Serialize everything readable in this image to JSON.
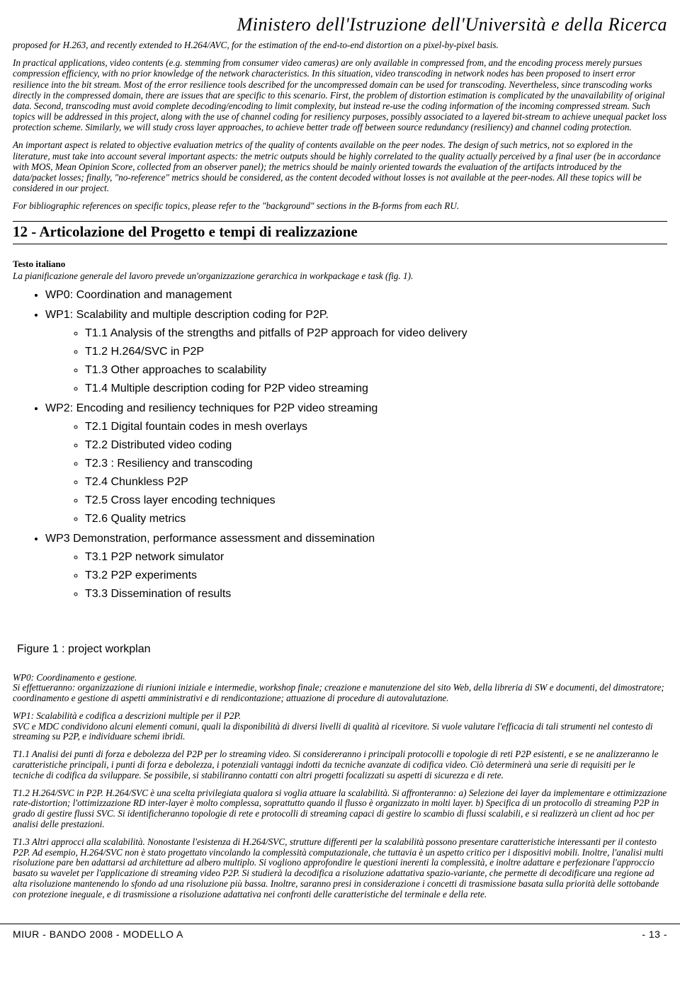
{
  "header": {
    "ministry": "Ministero dell'Istruzione dell'Università e della Ricerca"
  },
  "paragraphs": {
    "p1": "proposed for H.263, and recently extended to H.264/AVC, for the estimation of the end-to-end distortion on a pixel-by-pixel basis.",
    "p2": "In practical applications, video contents (e.g. stemming from consumer video cameras) are only available in compressed from, and the encoding process merely pursues compression efficiency, with no prior knowledge of the network characteristics. In this situation, video transcoding in network nodes has been proposed to insert error resilience into the bit stream. Most of the error resilience tools described for the uncompressed domain can be used for transcoding. Nevertheless, since transcoding works directly in the compressed domain, there are issues that are specific to this scenario. First, the problem of distortion estimation is complicated by the unavailability of original data. Second, transcoding must avoid complete decoding/encoding to limit complexity, but instead re-use the coding information of the incoming compressed stream. Such topics will be addressed in this project, along with the use of channel coding for resiliency purposes, possibly associated to a layered bit-stream to achieve unequal packet loss protection scheme. Similarly, we will study cross layer approaches, to achieve better trade off between source redundancy (resiliency) and channel coding protection.",
    "p3": "An important aspect is related to objective evaluation metrics of the quality of contents available on the peer nodes. The design of such metrics,  not so explored in the literature, must take into account several important aspects: the metric outputs should be highly correlated to the quality actually perceived by a final user (be in accordance with MOS, Mean Opinion Score, collected from an observer panel); the metrics should be mainly oriented towards the evaluation of the artifacts introduced by the data/packet losses; finally, \"no-reference\" metrics should be considered, as the content decoded without losses is not available at the peer-nodes. All these topics will be considered in our project.",
    "p4": "For bibliographic references on specific topics, please refer to the \"background\" sections in the B-forms from each RU."
  },
  "section12": {
    "number_title": "12 - Articolazione del Progetto e tempi di realizzazione",
    "testo_label": "Testo italiano",
    "intro": "La pianificazione generale del lavoro prevede un'organizzazione gerarchica in  workpackage e task  (fig. 1)."
  },
  "workplan": {
    "wp0": "WP0: Coordination and management",
    "wp1": "WP1: Scalability and multiple description coding for P2P.",
    "wp1_items": {
      "t11": "T1.1 Analysis of the strengths and pitfalls of P2P approach for video delivery",
      "t12": "T1.2 H.264/SVC in P2P",
      "t13": "T1.3 Other approaches to scalability",
      "t14": "T1.4 Multiple description coding for P2P video streaming"
    },
    "wp2": "WP2: Encoding and resiliency techniques for P2P video streaming",
    "wp2_items": {
      "t21": "T2.1 Digital fountain codes  in mesh overlays",
      "t22": "T2.2 Distributed video coding",
      "t23": "T2.3 : Resiliency and transcoding",
      "t24": "T2.4 Chunkless P2P",
      "t25": "T2.5 Cross layer encoding techniques",
      "t26": "T2.6 Quality metrics"
    },
    "wp3": "WP3 Demonstration, performance assessment and dissemination",
    "wp3_items": {
      "t31": "T3.1 P2P network simulator",
      "t32": "T3.2 P2P experiments",
      "t33": "T3.3 Dissemination of results"
    },
    "figure_caption": "Figure 1 : project workplan"
  },
  "body_it": {
    "wp0": "WP0: Coordinamento e gestione.\nSi effettueranno: organizzazione di riunioni iniziale e intermedie, workshop finale; creazione e manutenzione del sito Web, della libreria di SW e documenti, del dimostratore; coordinamento e gestione di aspetti amministrativi e di rendicontazione; attuazione di procedure di autovalutazione.",
    "wp1": "WP1: Scalabilità e codifica a descrizioni multiple per il P2P.\nSVC e MDC condividono alcuni elementi comuni, quali la disponibilità di diversi livelli di qualità al ricevitore. Si vuole valutare l'efficacia di tali strumenti nel contesto di streaming su P2P, e  individuare schemi ibridi.",
    "t11": "T1.1 Analisi dei punti di forza e debolezza del P2P per lo streaming video.  Si considereranno i principali protocolli e topologie di reti P2P esistenti, e se ne analizzeranno le caratteristiche principali, i punti di forza e debolezza, i potenziali vantaggi indotti da tecniche avanzate di codifica video. Ciò determinerà una serie di requisiti per le tecniche di codifica da sviluppare. Se possibile, si stabiliranno contatti con altri progetti focalizzati su aspetti di sicurezza e di rete.",
    "t12": "T1.2 H.264/SVC in P2P. H.264/SVC è una scelta privilegiata qualora si voglia attuare la scalabilità. Si affronteranno: a) Selezione dei layer da implementare e ottimizzazione rate-distortion; l'ottimizzazione RD inter-layer è molto complessa, soprattutto quando il flusso è organizzato in molti layer.  b) Specifica di un protocollo di streaming P2P in grado di gestire flussi SVC. Si identificheranno topologie di rete e protocolli di streaming capaci di gestire lo scambio di flussi scalabili, e si realizzerà un client ad hoc per analisi delle prestazioni.",
    "t13": "T1.3 Altri approcci alla scalabilità. Nonostante l'esistenza di H.264/SVC,  strutture differenti per la scalabilità possono presentare caratteristiche interessanti per il contesto P2P. Ad esempio, H.264/SVC non è stato progettato vincolando la complessità computazionale, che tuttavia è un aspetto critico per i dispositivi mobili. Inoltre, l'analisi multi risoluzione pare ben adattarsi ad architetture ad albero multiplo. Si vogliono approfondire le questioni inerenti la complessità, e inoltre adattare e perfezionare l'approccio basato su wavelet per l'applicazione di streaming video P2P. Si studierà la decodifica a risoluzione adattativa spazio-variante, che permette di decodificare una regione ad alta risoluzione mantenendo lo sfondo ad una risoluzione più bassa. Inoltre, saranno presi in considerazione i concetti di trasmissione basata sulla priorità delle sottobande con protezione ineguale, e di trasmissione a risoluzione adattativa nei confronti delle caratteristiche del terminale e della rete."
  },
  "footer": {
    "left": "MIUR - BANDO 2008 - MODELLO A",
    "right": "- 13 -"
  }
}
